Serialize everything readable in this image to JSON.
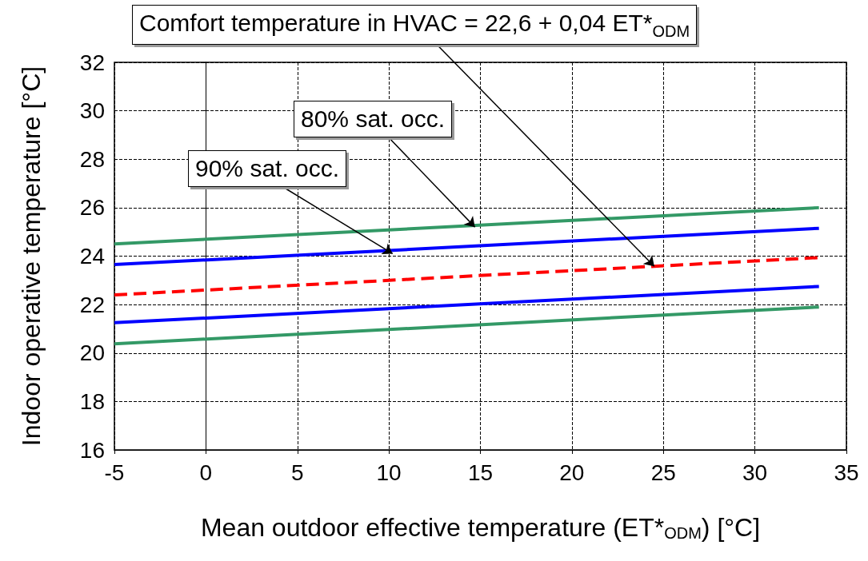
{
  "chart_data": {
    "type": "line",
    "xlabel": "Mean outdoor effective temperature (ET*$_{ODM}$) [°C]",
    "ylabel": "Indoor operative temperature [°C]",
    "x": [
      -5,
      33.5
    ],
    "series": [
      {
        "color": "#339966",
        "values": [
          24.5,
          26.0
        ],
        "line_style": "solid"
      },
      {
        "color": "#0000ff",
        "values": [
          23.65,
          25.15
        ],
        "line_style": "solid"
      },
      {
        "color": "#ff0000",
        "values": [
          22.4,
          23.94
        ],
        "line_style": "dashed"
      },
      {
        "color": "#0000ff",
        "values": [
          21.25,
          22.75
        ],
        "line_style": "solid"
      },
      {
        "color": "#339966",
        "values": [
          20.38,
          21.9
        ],
        "line_style": "solid"
      }
    ],
    "annotations": [
      {
        "text": "Comfort temperature in HVAC = 22,6 + 0,04 ET*$_{ODM}$",
        "x": 24.5,
        "y": 23.58
      },
      {
        "text": "80% sat. occ.",
        "x": 14.7,
        "y": 25.2
      },
      {
        "text": "90% sat. occ.",
        "x": 10.2,
        "y": 24.1
      }
    ],
    "xlim": [
      -5,
      35
    ],
    "xticks": [
      -5,
      0,
      5,
      10,
      15,
      20,
      25,
      30,
      35
    ],
    "ylim": [
      16,
      32
    ],
    "yticks": [
      16,
      18,
      20,
      22,
      24,
      26,
      28,
      30,
      32
    ],
    "grid": true,
    "marker": "none"
  }
}
